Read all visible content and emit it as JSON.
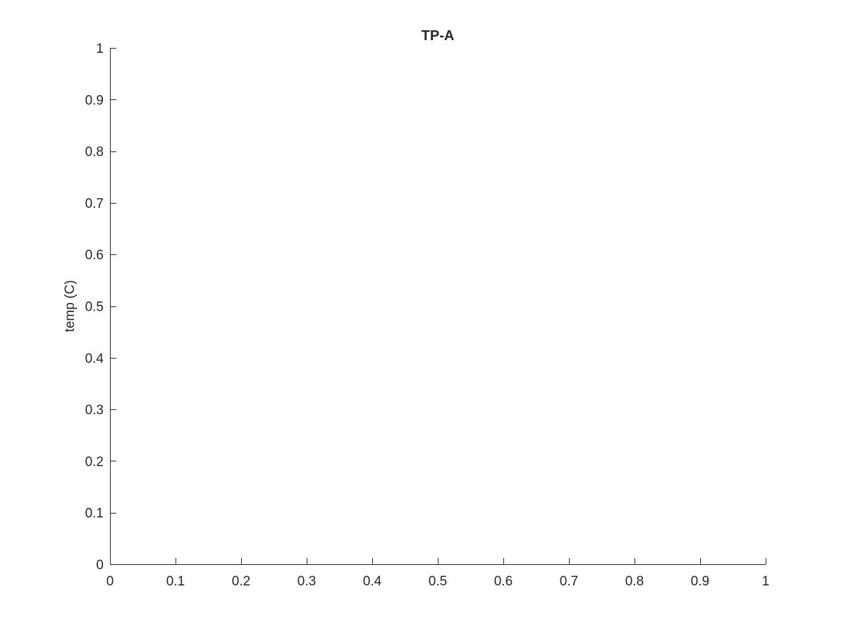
{
  "chart_data": {
    "type": "line",
    "title": "TP-A",
    "xlabel": "",
    "ylabel": "temp (C)",
    "xlim": [
      0,
      1
    ],
    "ylim": [
      0,
      1
    ],
    "x_ticks": [
      0,
      0.1,
      0.2,
      0.3,
      0.4,
      0.5,
      0.6,
      0.7,
      0.8,
      0.9,
      1
    ],
    "x_tick_labels": [
      "0",
      "0.1",
      "0.2",
      "0.3",
      "0.4",
      "0.5",
      "0.6",
      "0.7",
      "0.8",
      "0.9",
      "1"
    ],
    "y_ticks": [
      0,
      0.1,
      0.2,
      0.3,
      0.4,
      0.5,
      0.6,
      0.7,
      0.8,
      0.9,
      1
    ],
    "y_tick_labels": [
      "0",
      "0.1",
      "0.2",
      "0.3",
      "0.4",
      "0.5",
      "0.6",
      "0.7",
      "0.8",
      "0.9",
      "1"
    ],
    "grid": false,
    "legend": "none",
    "series": [],
    "colors": {
      "axis": "#262626",
      "background": "#ffffff"
    }
  }
}
